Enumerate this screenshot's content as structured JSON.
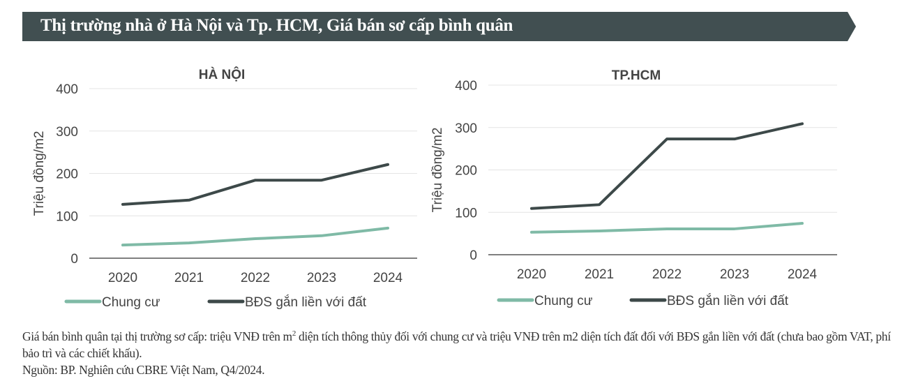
{
  "header": {
    "title": "Thị trường nhà ở Hà Nội và Tp. HCM, Giá bán sơ cấp bình quân"
  },
  "colors": {
    "banner": "#414f51",
    "chung_cu": "#7fbaa6",
    "bds": "#3d4949",
    "grid": "#e4e4e4",
    "axis": "#555555"
  },
  "chart_data": [
    {
      "type": "line",
      "title": "HÀ NỘI",
      "ylabel": "Triệu đồng/m2",
      "xlabel": "",
      "categories": [
        "2020",
        "2021",
        "2022",
        "2023",
        "2024"
      ],
      "ylim": [
        0,
        400
      ],
      "yticks": [
        "0",
        "100",
        "200",
        "300",
        "400"
      ],
      "grid": true,
      "legend": "bottom",
      "series": [
        {
          "name": "Chung cư",
          "values": [
            31,
            36,
            46,
            53,
            71
          ]
        },
        {
          "name": "BĐS gắn liền với đất",
          "values": [
            127,
            137,
            184,
            184,
            221
          ]
        }
      ]
    },
    {
      "type": "line",
      "title": "TP.HCM",
      "ylabel": "Triệu đồng/m2",
      "xlabel": "",
      "categories": [
        "2020",
        "2021",
        "2022",
        "2023",
        "2024"
      ],
      "ylim": [
        0,
        400
      ],
      "yticks": [
        "0",
        "100",
        "200",
        "300",
        "400"
      ],
      "grid": true,
      "legend": "bottom",
      "series": [
        {
          "name": "Chung cư",
          "values": [
            53,
            56,
            61,
            61,
            74
          ]
        },
        {
          "name": "BĐS gắn liền với đất",
          "values": [
            109,
            118,
            273,
            273,
            309
          ]
        }
      ]
    }
  ],
  "footnote": {
    "line1_a": "Giá bán bình quân tại thị trường sơ cấp: triệu VNĐ trên m",
    "line1_sup": "2",
    "line1_b": " diện tích thông thủy đối với chung cư và triệu VNĐ trên m2 diện tích đất đối với BĐS gắn liền với đất (chưa bao gồm VAT, phí bảo trì và các chiết khấu).",
    "source": "Nguồn: BP. Nghiên cứu CBRE Việt Nam, Q4/2024."
  }
}
